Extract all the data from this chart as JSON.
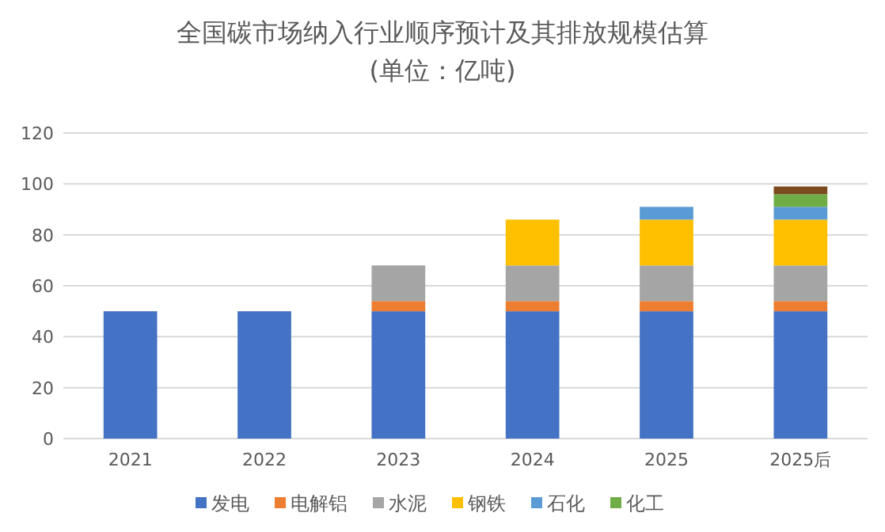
{
  "chart_data": {
    "type": "bar",
    "title": "全国碳市场纳入行业顺序预计及其排放规模估算",
    "subtitle": "(单位：亿吨)",
    "categories": [
      "2021",
      "2022",
      "2023",
      "2024",
      "2025",
      "2025后"
    ],
    "stacked": true,
    "ylim": [
      0,
      120
    ],
    "yticks": [
      0,
      20,
      40,
      60,
      80,
      100,
      120
    ],
    "grid": "y",
    "legend": "bottom",
    "series": [
      {
        "name": "发电",
        "color": "#4472c4",
        "values": [
          50,
          50,
          50,
          50,
          50,
          50
        ]
      },
      {
        "name": "电解铝",
        "color": "#ed7d31",
        "values": [
          null,
          null,
          4,
          4,
          4,
          4
        ]
      },
      {
        "name": "水泥",
        "color": "#a5a5a5",
        "values": [
          null,
          null,
          14,
          14,
          14,
          14
        ]
      },
      {
        "name": "钢铁",
        "color": "#ffc000",
        "values": [
          null,
          null,
          null,
          18,
          18,
          18
        ]
      },
      {
        "name": "石化",
        "color": "#5b9bd5",
        "values": [
          null,
          null,
          null,
          null,
          5,
          5
        ]
      },
      {
        "name": "化工",
        "color": "#70ad47",
        "values": [
          null,
          null,
          null,
          null,
          null,
          5
        ]
      },
      {
        "color": "#7b4a1e",
        "values": [
          null,
          null,
          null,
          null,
          null,
          3
        ]
      }
    ]
  }
}
